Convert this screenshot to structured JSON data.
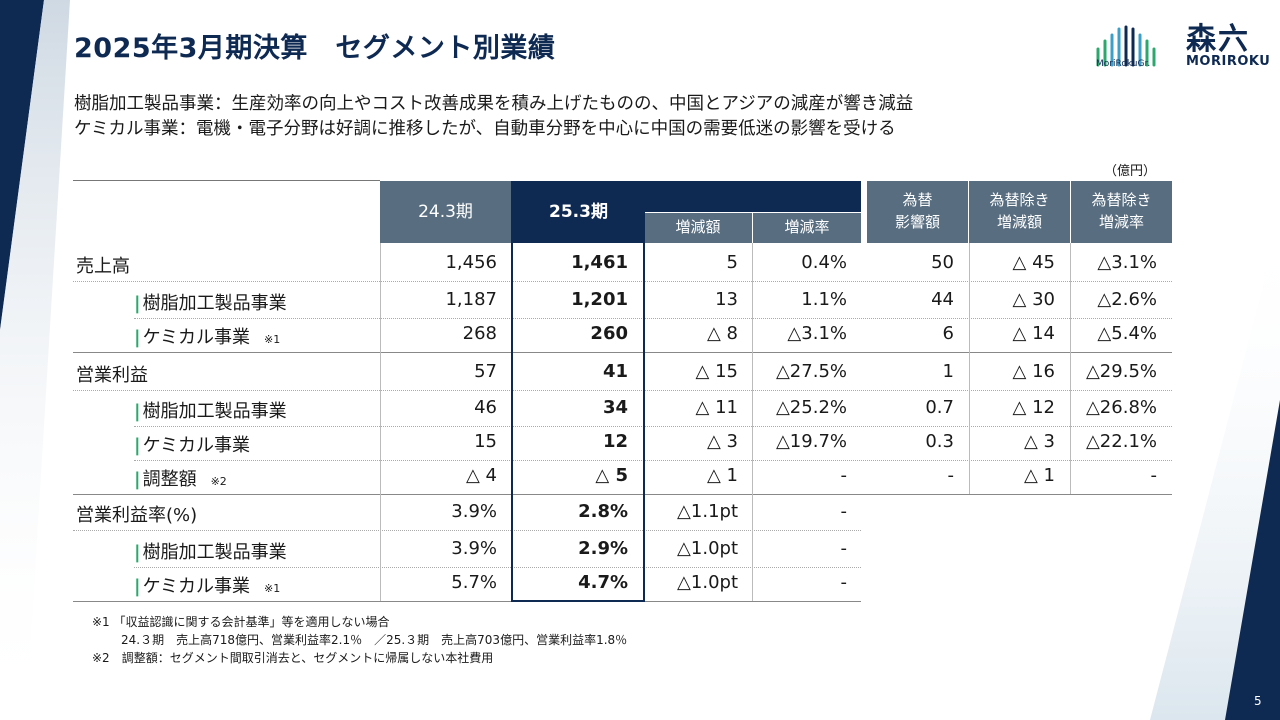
{
  "title": "2025年3月期決算　セグメント別業績",
  "subtitle_lines": [
    "樹脂加工製品事業：生産効率の向上やコスト改善成果を積み上げたものの、中国とアジアの減産が響き減益",
    "ケミカル事業：電機・電子分野は好調に推移したが、自動車分野を中心に中国の需要低迷の影響を受ける"
  ],
  "logo": {
    "group": "MoriRokuGr.",
    "kanji": "森六",
    "roman": "MORIROKU"
  },
  "unit": "（億円）",
  "headers": {
    "prev": "24.3期",
    "curr": "25.3期",
    "change_amount": "増減額",
    "change_rate": "増減率",
    "fx_impact": [
      "為替",
      "影響額"
    ],
    "ex_fx_amount": [
      "為替除き",
      "増減額"
    ],
    "ex_fx_rate": [
      "為替除き",
      "増減率"
    ]
  },
  "rows": [
    {
      "label": "売上高",
      "sub": false,
      "prev": "1,456",
      "curr": "1,461",
      "diff": "5",
      "rate": "0.4%",
      "fx": "50",
      "exd": "△ 45",
      "exr": "△3.1%"
    },
    {
      "label": "樹脂加工製品事業",
      "sub": true,
      "prev": "1,187",
      "curr": "1,201",
      "diff": "13",
      "rate": "1.1%",
      "fx": "44",
      "exd": "△ 30",
      "exr": "△2.6%"
    },
    {
      "label": "ケミカル事業",
      "sub": true,
      "note": "※1",
      "prev": "268",
      "curr": "260",
      "diff": "△ 8",
      "rate": "△3.1%",
      "fx": "6",
      "exd": "△ 14",
      "exr": "△5.4%"
    },
    {
      "label": "営業利益",
      "sub": false,
      "prev": "57",
      "curr": "41",
      "diff": "△ 15",
      "rate": "△27.5%",
      "fx": "1",
      "exd": "△ 16",
      "exr": "△29.5%"
    },
    {
      "label": "樹脂加工製品事業",
      "sub": true,
      "prev": "46",
      "curr": "34",
      "diff": "△ 11",
      "rate": "△25.2%",
      "fx": "0.7",
      "exd": "△ 12",
      "exr": "△26.8%"
    },
    {
      "label": "ケミカル事業",
      "sub": true,
      "prev": "15",
      "curr": "12",
      "diff": "△ 3",
      "rate": "△19.7%",
      "fx": "0.3",
      "exd": "△ 3",
      "exr": "△22.1%"
    },
    {
      "label": "調整額",
      "sub": true,
      "note": "※2",
      "prev": "△ 4",
      "curr": "△ 5",
      "diff": "△ 1",
      "rate": "-",
      "fx": "-",
      "exd": "△ 1",
      "exr": "-"
    },
    {
      "label": "営業利益率(%)",
      "sub": false,
      "prev": "3.9%",
      "curr": "2.8%",
      "diff": "△1.1pt",
      "rate": "-"
    },
    {
      "label": "樹脂加工製品事業",
      "sub": true,
      "prev": "3.9%",
      "curr": "2.9%",
      "diff": "△1.0pt",
      "rate": "-"
    },
    {
      "label": "ケミカル事業",
      "sub": true,
      "note": "※1",
      "prev": "5.7%",
      "curr": "4.7%",
      "diff": "△1.0pt",
      "rate": "-"
    }
  ],
  "footnotes": [
    "※1 「収益認識に関する会計基準」等を適用しない場合",
    "24.３期　売上高718億円、営業利益率2.1％　／25.３期　売上高703億円、営業利益率1.8％",
    "※2　調整額：セグメント間取引消去と、セグメントに帰属しない本社費用"
  ],
  "page_number": "5",
  "colors": {
    "navy": "#0f2a52",
    "header_gray": "#586e80",
    "accent_green": "#2aa86e"
  }
}
